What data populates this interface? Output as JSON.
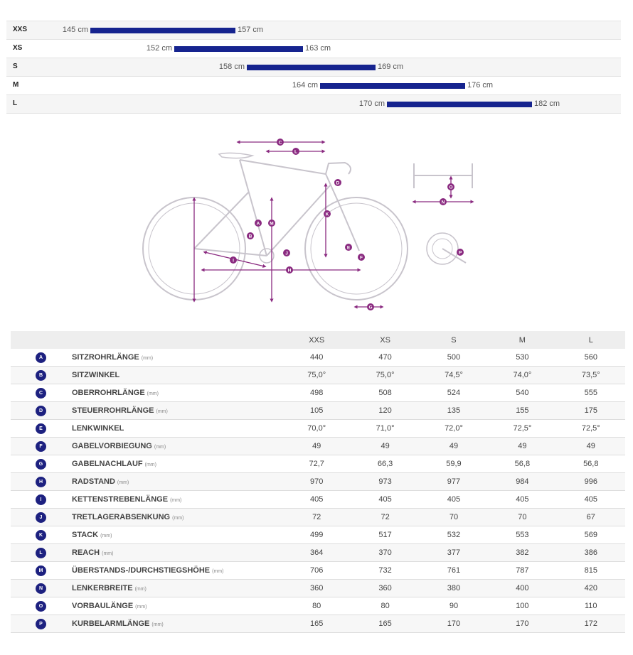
{
  "size_range": [
    {
      "size": "XXS",
      "min": "145 cm",
      "max": "157 cm"
    },
    {
      "size": "XS",
      "min": "152 cm",
      "max": "163 cm"
    },
    {
      "size": "S",
      "min": "158 cm",
      "max": "169 cm"
    },
    {
      "size": "M",
      "min": "164 cm",
      "max": "176 cm"
    },
    {
      "size": "L",
      "min": "170 cm",
      "max": "182 cm"
    }
  ],
  "diagram_labels": [
    "A",
    "B",
    "C",
    "D",
    "E",
    "F",
    "G",
    "H",
    "I",
    "J",
    "K",
    "L",
    "M",
    "N",
    "O",
    "P"
  ],
  "colors": {
    "bar": "#16248f",
    "badge": "#1d2180",
    "diagram_stroke": "#c8c4cc",
    "dimension": "#8a2a80"
  },
  "table": {
    "columns": [
      "XXS",
      "XS",
      "S",
      "M",
      "L"
    ],
    "rows": [
      {
        "key": "A",
        "name": "SITZROHRLÄNGE",
        "unit": "(mm)",
        "values": [
          "440",
          "470",
          "500",
          "530",
          "560"
        ]
      },
      {
        "key": "B",
        "name": "SITZWINKEL",
        "unit": "",
        "values": [
          "75,0°",
          "75,0°",
          "74,5°",
          "74,0°",
          "73,5°"
        ]
      },
      {
        "key": "C",
        "name": "OBERROHRLÄNGE",
        "unit": "(mm)",
        "values": [
          "498",
          "508",
          "524",
          "540",
          "555"
        ]
      },
      {
        "key": "D",
        "name": "STEUERROHRLÄNGE",
        "unit": "(mm)",
        "values": [
          "105",
          "120",
          "135",
          "155",
          "175"
        ]
      },
      {
        "key": "E",
        "name": "LENKWINKEL",
        "unit": "",
        "values": [
          "70,0°",
          "71,0°",
          "72,0°",
          "72,5°",
          "72,5°"
        ]
      },
      {
        "key": "F",
        "name": "GABELVORBIEGUNG",
        "unit": "(mm)",
        "values": [
          "49",
          "49",
          "49",
          "49",
          "49"
        ]
      },
      {
        "key": "G",
        "name": "GABELNACHLAUF",
        "unit": "(mm)",
        "values": [
          "72,7",
          "66,3",
          "59,9",
          "56,8",
          "56,8"
        ]
      },
      {
        "key": "H",
        "name": "RADSTAND",
        "unit": "(mm)",
        "values": [
          "970",
          "973",
          "977",
          "984",
          "996"
        ]
      },
      {
        "key": "I",
        "name": "KETTENSTREBENLÄNGE",
        "unit": "(mm)",
        "values": [
          "405",
          "405",
          "405",
          "405",
          "405"
        ]
      },
      {
        "key": "J",
        "name": "TRETLAGERABSENKUNG",
        "unit": "(mm)",
        "values": [
          "72",
          "72",
          "70",
          "70",
          "67"
        ]
      },
      {
        "key": "K",
        "name": "STACK",
        "unit": "(mm)",
        "values": [
          "499",
          "517",
          "532",
          "553",
          "569"
        ]
      },
      {
        "key": "L",
        "name": "REACH",
        "unit": "(mm)",
        "values": [
          "364",
          "370",
          "377",
          "382",
          "386"
        ]
      },
      {
        "key": "M",
        "name": "ÜBERSTANDS-/DURCHSTIEGSHÖHE",
        "unit": "(mm)",
        "values": [
          "706",
          "732",
          "761",
          "787",
          "815"
        ]
      },
      {
        "key": "N",
        "name": "LENKERBREITE",
        "unit": "(mm)",
        "values": [
          "360",
          "360",
          "380",
          "400",
          "420"
        ]
      },
      {
        "key": "O",
        "name": "VORBAULÄNGE",
        "unit": "(mm)",
        "values": [
          "80",
          "80",
          "90",
          "100",
          "110"
        ]
      },
      {
        "key": "P",
        "name": "KURBELARMLÄNGE",
        "unit": "(mm)",
        "values": [
          "165",
          "165",
          "170",
          "170",
          "172"
        ]
      }
    ]
  }
}
